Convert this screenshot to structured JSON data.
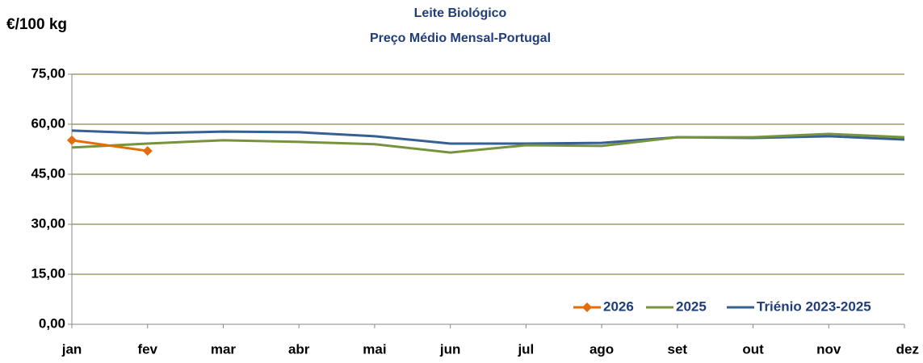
{
  "chart_data": {
    "type": "line",
    "title": "Leite Biológico",
    "subtitle": "Preço Médio Mensal-Portugal",
    "y_axis_label": "€/100 kg",
    "categories": [
      "jan",
      "fev",
      "mar",
      "abr",
      "mai",
      "jun",
      "jul",
      "ago",
      "set",
      "out",
      "nov",
      "dez"
    ],
    "series": [
      {
        "name": "2026",
        "color": "#e46c0a",
        "marker": "diamond",
        "values": [
          55.2,
          52.0,
          null,
          null,
          null,
          null,
          null,
          null,
          null,
          null,
          null,
          null
        ]
      },
      {
        "name": "2025",
        "color": "#77933c",
        "values": [
          53.0,
          54.2,
          55.2,
          54.7,
          54.0,
          51.5,
          53.7,
          53.5,
          56.1,
          56.1,
          57.1,
          56.1
        ]
      },
      {
        "name": "Triénio 2023-2025",
        "color": "#376092",
        "values": [
          58.1,
          57.3,
          57.8,
          57.6,
          56.4,
          54.2,
          54.2,
          54.4,
          56.1,
          55.9,
          56.4,
          55.4
        ]
      }
    ],
    "ylim": [
      0,
      75
    ],
    "yticks": [
      {
        "value": 0,
        "label": "0,00"
      },
      {
        "value": 15,
        "label": "15,00"
      },
      {
        "value": 30,
        "label": "30,00"
      },
      {
        "value": 45,
        "label": "45,00"
      },
      {
        "value": 60,
        "label": "60,00"
      },
      {
        "value": 75,
        "label": "75,00"
      }
    ],
    "grid": true,
    "legend": "bottom-right"
  }
}
